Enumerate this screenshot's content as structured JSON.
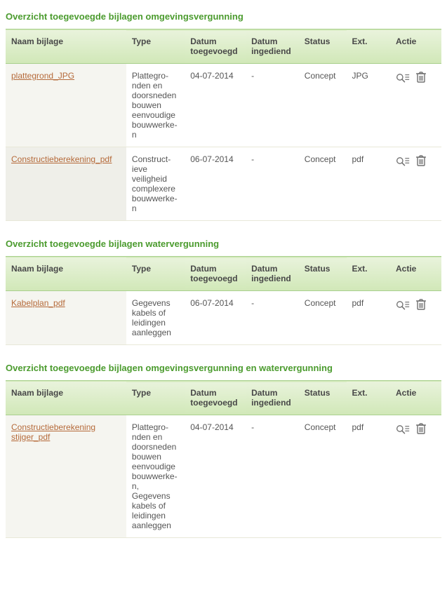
{
  "colors": {
    "heading": "#4b9b2e",
    "link": "#b56a3a",
    "header_bg_top": "#e9f3dc",
    "header_bg_bottom": "#d1e8b8",
    "header_border": "#a9d08e",
    "row_alt_bg": "#f5f5f0",
    "icon_stroke": "#707070"
  },
  "columns": {
    "naam": "Naam bijlage",
    "type": "Type",
    "datum_toegevoegd": "Datum toegevoegd",
    "datum_ingediend": "Datum ingediend",
    "status": "Status",
    "ext": "Ext.",
    "actie": "Actie"
  },
  "sections": [
    {
      "title": "Overzicht toegevoegde bijlagen omgevingsvergunning",
      "rows": [
        {
          "naam": "plattegrond_JPG",
          "type": "Plattegro­nden en doorsneden bouwen eenvoudige bouwwerke­n",
          "datum_toegevoegd": "04-07-2014",
          "datum_ingediend": "-",
          "status": "Concept",
          "ext": "JPG"
        },
        {
          "naam": "Constructieberekeni­ng_pdf",
          "type": "Construct­ieve veiligheid complexere bouwwerke­n",
          "datum_toegevoegd": "06-07-2014",
          "datum_ingediend": "-",
          "status": "Concept",
          "ext": "pdf"
        }
      ]
    },
    {
      "title": "Overzicht toegevoegde bijlagen watervergunning",
      "rows": [
        {
          "naam": "Kabelplan_pdf",
          "type": "Gegevens kabels of leidingen aanleggen",
          "datum_toegevoegd": "06-07-2014",
          "datum_ingediend": "-",
          "status": "Concept",
          "ext": "pdf"
        }
      ]
    },
    {
      "title": "Overzicht toegevoegde bijlagen omgevingsvergunning en watervergunning",
      "rows": [
        {
          "naam": "Constructieberekening stijger_pdf",
          "type": "Plattegro­nden en doorsneden bouwen eenvoudige bouwwerke­n, Gegevens kabels of leidingen aanleggen",
          "datum_toegevoegd": "04-07-2014",
          "datum_ingediend": "-",
          "status": "Concept",
          "ext": "pdf"
        }
      ]
    }
  ]
}
